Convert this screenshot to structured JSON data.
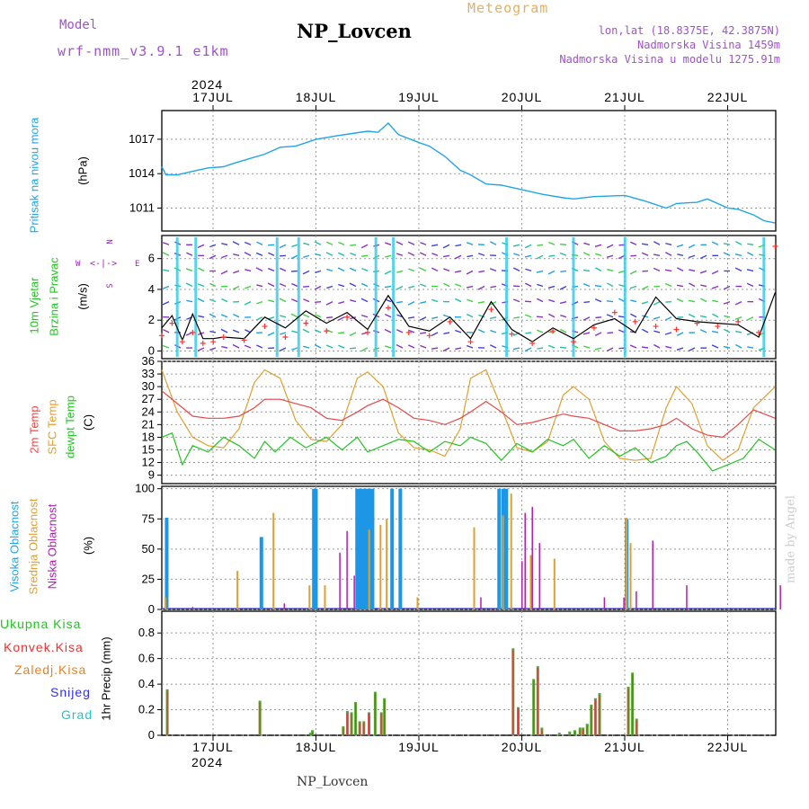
{
  "header": {
    "model_label": "Model",
    "model_name": "wrf-nmm_v3.9.1 e1km",
    "station_title": "NP_Lovcen",
    "product_title": "Meteogram",
    "lonlat": "lon,lat (18.8375E, 42.3875N)",
    "elevation": "Nadmorska Visina 1459m",
    "model_elevation": "Nadmorska Visina u modelu 1275.91m",
    "footer_station": "NP_Lovcen",
    "credit": "made by Angel",
    "year_top": "2024",
    "year_bottom": "2024"
  },
  "colors": {
    "pressure": "#22a5e6",
    "wind_speed": "#000000",
    "wind_gust": "#ff3333",
    "temp2m": "#e84848",
    "sfc_temp": "#e0a030",
    "dewpt": "#22c422",
    "high_cloud": "#1e96e6",
    "mid_cloud": "#e0a030",
    "low_cloud": "#b020b0",
    "precip_total": "#4fa830",
    "precip_conv": "#ee3030",
    "precip_grid": "#e88020",
    "snow": "#3030ee",
    "graupel": "#18c8c8",
    "wind_dir_label": "#a020c0"
  },
  "dates": [
    "17JUL",
    "18JUL",
    "19JUL",
    "20JUL",
    "21JUL",
    "22JUL"
  ],
  "legend_wind_dir": {
    "n": "N",
    "s": "S",
    "w": "W",
    "e": "E"
  },
  "chart_data": [
    {
      "type": "line",
      "name": "pressure",
      "ylabel_main": "Pritisak na nivou mora",
      "unit": "(hPa)",
      "ylim": [
        1009,
        1019.5
      ],
      "yticks": [
        1011,
        1014,
        1017
      ],
      "x_days": [
        0,
        0.04,
        0.15,
        0.3,
        0.45,
        0.6,
        0.7,
        0.85,
        1.0,
        1.15,
        1.3,
        1.5,
        1.7,
        1.85,
        2.0,
        2.1,
        2.2,
        2.3,
        2.5,
        2.6,
        2.75,
        2.9,
        3.0,
        3.15,
        3.3,
        3.5,
        3.7,
        3.9,
        4.0,
        4.2,
        4.5,
        4.7,
        4.9,
        5.0,
        5.2,
        5.3,
        5.5,
        5.6,
        5.75,
        5.85,
        5.96
      ],
      "values": [
        1014.6,
        1013.9,
        1013.9,
        1014.2,
        1014.5,
        1014.6,
        1014.9,
        1015.3,
        1015.7,
        1016.3,
        1016.4,
        1017.0,
        1017.3,
        1017.5,
        1017.7,
        1017.6,
        1018.4,
        1017.4,
        1016.7,
        1016.4,
        1015.5,
        1014.3,
        1013.9,
        1013.1,
        1013.0,
        1012.6,
        1012.2,
        1011.9,
        1011.8,
        1012.0,
        1012.1,
        1011.6,
        1011.0,
        1011.4,
        1011.5,
        1011.8,
        1011.0,
        1010.9,
        1010.4,
        1009.9,
        1009.7
      ]
    },
    {
      "type": "line",
      "name": "wind",
      "ylabel_main": "10m Vjetar",
      "ylabel_sub": "Brzina i Pravac",
      "unit": "(m/s)",
      "ylim": [
        -0.5,
        7.5
      ],
      "yticks": [
        0,
        2,
        4,
        6
      ],
      "x_days": [
        0,
        0.1,
        0.2,
        0.3,
        0.4,
        0.5,
        0.6,
        0.8,
        1.0,
        1.2,
        1.4,
        1.6,
        1.8,
        2.0,
        2.2,
        2.4,
        2.6,
        2.8,
        3.0,
        3.2,
        3.4,
        3.6,
        3.8,
        4.0,
        4.2,
        4.4,
        4.6,
        4.8,
        5.0,
        5.2,
        5.4,
        5.6,
        5.8,
        5.96
      ],
      "speed": [
        1.5,
        2.3,
        0.7,
        2.4,
        0.8,
        0.8,
        0.9,
        0.8,
        2.2,
        1.5,
        2.6,
        1.8,
        2.5,
        1.4,
        3.6,
        1.6,
        1.3,
        2.2,
        0.8,
        3.2,
        1.4,
        0.6,
        1.5,
        0.8,
        1.7,
        2.1,
        1.2,
        3.5,
        2.1,
        1.9,
        1.8,
        1.7,
        0.9,
        3.8
      ],
      "gust": [
        1.0,
        1.8,
        0.6,
        1.2,
        0.5,
        0.6,
        0.9,
        0.7,
        1.6,
        0.9,
        1.8,
        1.3,
        2.2,
        1.2,
        2.8,
        1.2,
        1.0,
        1.9,
        0.6,
        2.7,
        1.1,
        0.5,
        1.3,
        0.6,
        1.5,
        2.5,
        1.9,
        1.6,
        1.4,
        1.8,
        1.6,
        1.9,
        1.2,
        6.8
      ]
    },
    {
      "type": "line",
      "name": "temperature",
      "ylabel_main": "2m Temp",
      "ylabel_mid": "SFC Temp",
      "ylabel_sub": "dewpt Temp",
      "unit": "(C)",
      "ylim": [
        7,
        36
      ],
      "yticks": [
        9,
        12,
        15,
        18,
        21,
        24,
        27,
        30,
        33,
        36
      ],
      "x_days": [
        0,
        0.15,
        0.3,
        0.45,
        0.6,
        0.75,
        0.9,
        1.0,
        1.15,
        1.3,
        1.45,
        1.6,
        1.75,
        1.9,
        2.0,
        2.15,
        2.3,
        2.45,
        2.6,
        2.75,
        2.9,
        3.0,
        3.15,
        3.3,
        3.45,
        3.6,
        3.75,
        3.9,
        4.0,
        4.15,
        4.3,
        4.45,
        4.6,
        4.75,
        4.9,
        5.0,
        5.15,
        5.3,
        5.45,
        5.6,
        5.75,
        5.96
      ],
      "t2m": [
        29,
        26,
        23,
        22.5,
        22.5,
        23,
        25,
        27,
        27,
        26,
        25,
        22.5,
        22,
        24,
        25.5,
        27,
        25,
        22.5,
        22,
        21,
        22.5,
        24,
        26.5,
        24,
        21,
        21.5,
        22.5,
        23.5,
        23,
        22.5,
        21,
        19.5,
        19.5,
        20,
        21,
        22.5,
        20,
        18.5,
        18,
        21,
        24.5,
        22.5
      ],
      "sfc": [
        34,
        24,
        18,
        16,
        15.5,
        20,
        31,
        34,
        32,
        22,
        17.5,
        17,
        21,
        32,
        33.5,
        30,
        19,
        15.5,
        15,
        13.5,
        20,
        32,
        34,
        25,
        15.5,
        14.5,
        17,
        28,
        30,
        27,
        17,
        13,
        12.5,
        13,
        25,
        30,
        26,
        16,
        12.5,
        15,
        25,
        30
      ]
    }
  ],
  "dewpt": {
    "x_days": [
      0,
      0.1,
      0.2,
      0.3,
      0.45,
      0.6,
      0.75,
      0.9,
      1.0,
      1.1,
      1.25,
      1.4,
      1.6,
      1.75,
      1.9,
      2.0,
      2.15,
      2.3,
      2.45,
      2.6,
      2.75,
      2.9,
      3.0,
      3.15,
      3.3,
      3.45,
      3.6,
      3.75,
      3.9,
      4.0,
      4.15,
      4.3,
      4.45,
      4.6,
      4.75,
      4.9,
      5.0,
      5.1,
      5.2,
      5.35,
      5.5,
      5.65,
      5.8,
      5.96
    ],
    "values": [
      18,
      19,
      11.5,
      16,
      14.5,
      18,
      16,
      13,
      17,
      14.5,
      18,
      15.5,
      18,
      15,
      18,
      14.5,
      16,
      17.5,
      17,
      14.5,
      17,
      16,
      18,
      16.5,
      12.5,
      16.5,
      14.5,
      17.5,
      16,
      17.5,
      13,
      16,
      13.5,
      15.5,
      12,
      13.5,
      16,
      17,
      14.5,
      10,
      11.5,
      13,
      17.5,
      15
    ]
  },
  "clouds": {
    "ylabel_high": "Visoka Oblacnost",
    "ylabel_mid": "Srednja Oblacnost",
    "ylabel_low": "Niska Oblacnost",
    "unit": "(%)",
    "ylim": [
      0,
      102
    ],
    "yticks": [
      0,
      25,
      50,
      75,
      100
    ],
    "high_bars": [
      [
        0.03,
        76
      ],
      [
        0.95,
        60
      ],
      [
        1.46,
        100
      ],
      [
        1.48,
        100
      ],
      [
        1.88,
        100
      ],
      [
        1.91,
        100
      ],
      [
        1.94,
        100
      ],
      [
        1.97,
        100
      ],
      [
        2.0,
        100
      ],
      [
        2.03,
        100
      ],
      [
        2.22,
        100
      ],
      [
        2.3,
        100
      ],
      [
        3.26,
        100
      ],
      [
        3.3,
        100
      ],
      [
        3.33,
        100
      ],
      [
        4.5,
        75
      ]
    ],
    "mid_bars": [
      [
        0.0,
        10
      ],
      [
        0.7,
        32
      ],
      [
        1.05,
        80
      ],
      [
        1.4,
        20
      ],
      [
        1.55,
        20
      ],
      [
        1.98,
        66
      ],
      [
        2.09,
        70
      ],
      [
        2.15,
        75
      ],
      [
        2.45,
        10
      ],
      [
        3.0,
        68
      ],
      [
        3.28,
        78
      ],
      [
        3.36,
        96
      ],
      [
        3.55,
        45
      ],
      [
        3.78,
        42
      ],
      [
        4.48,
        76
      ],
      [
        4.52,
        55
      ]
    ],
    "low_bars": [
      [
        0.25,
        2
      ],
      [
        1.14,
        5
      ],
      [
        1.68,
        47
      ],
      [
        1.75,
        65
      ],
      [
        1.82,
        28
      ],
      [
        3.05,
        10
      ],
      [
        3.45,
        40
      ],
      [
        3.48,
        80
      ],
      [
        3.55,
        85
      ],
      [
        3.62,
        55
      ],
      [
        4.25,
        10
      ],
      [
        4.44,
        10
      ],
      [
        4.56,
        15
      ],
      [
        4.72,
        57
      ],
      [
        5.05,
        20
      ],
      [
        5.96,
        20
      ]
    ]
  },
  "precip": {
    "ylabel_total": "Ukupna Kisa",
    "ylabel_conv": "Konvek.Kisa",
    "ylabel_grid": "Zaledj.Kisa",
    "ylabel_snow": "Snijeg",
    "ylabel_graupel": "Grad",
    "unit_label": "1hr Precip (mm)",
    "ylim": [
      0,
      0.97
    ],
    "yticks": [
      0,
      0.2,
      0.4,
      0.6,
      0.8
    ],
    "bars": [
      [
        0.04,
        0.36
      ],
      [
        0.94,
        0.27
      ],
      [
        1.43,
        0.02
      ],
      [
        1.45,
        0.04
      ],
      [
        1.75,
        0.07
      ],
      [
        1.79,
        0.19
      ],
      [
        1.83,
        0.18
      ],
      [
        1.87,
        0.26
      ],
      [
        1.91,
        0.11
      ],
      [
        1.95,
        0.11
      ],
      [
        2.0,
        0.18
      ],
      [
        2.06,
        0.34
      ],
      [
        2.12,
        0.18
      ],
      [
        2.15,
        0.29
      ],
      [
        3.4,
        0.68
      ],
      [
        3.45,
        0.22
      ],
      [
        3.6,
        0.44
      ],
      [
        3.64,
        0.54
      ],
      [
        3.68,
        0.06
      ],
      [
        3.85,
        0.02
      ],
      [
        3.95,
        0.03
      ],
      [
        4.0,
        0.04
      ],
      [
        4.05,
        0.06
      ],
      [
        4.08,
        0.06
      ],
      [
        4.12,
        0.09
      ],
      [
        4.16,
        0.24
      ],
      [
        4.2,
        0.29
      ],
      [
        4.24,
        0.33
      ],
      [
        4.52,
        0.38
      ],
      [
        4.56,
        0.49
      ],
      [
        4.6,
        0.13
      ]
    ]
  }
}
